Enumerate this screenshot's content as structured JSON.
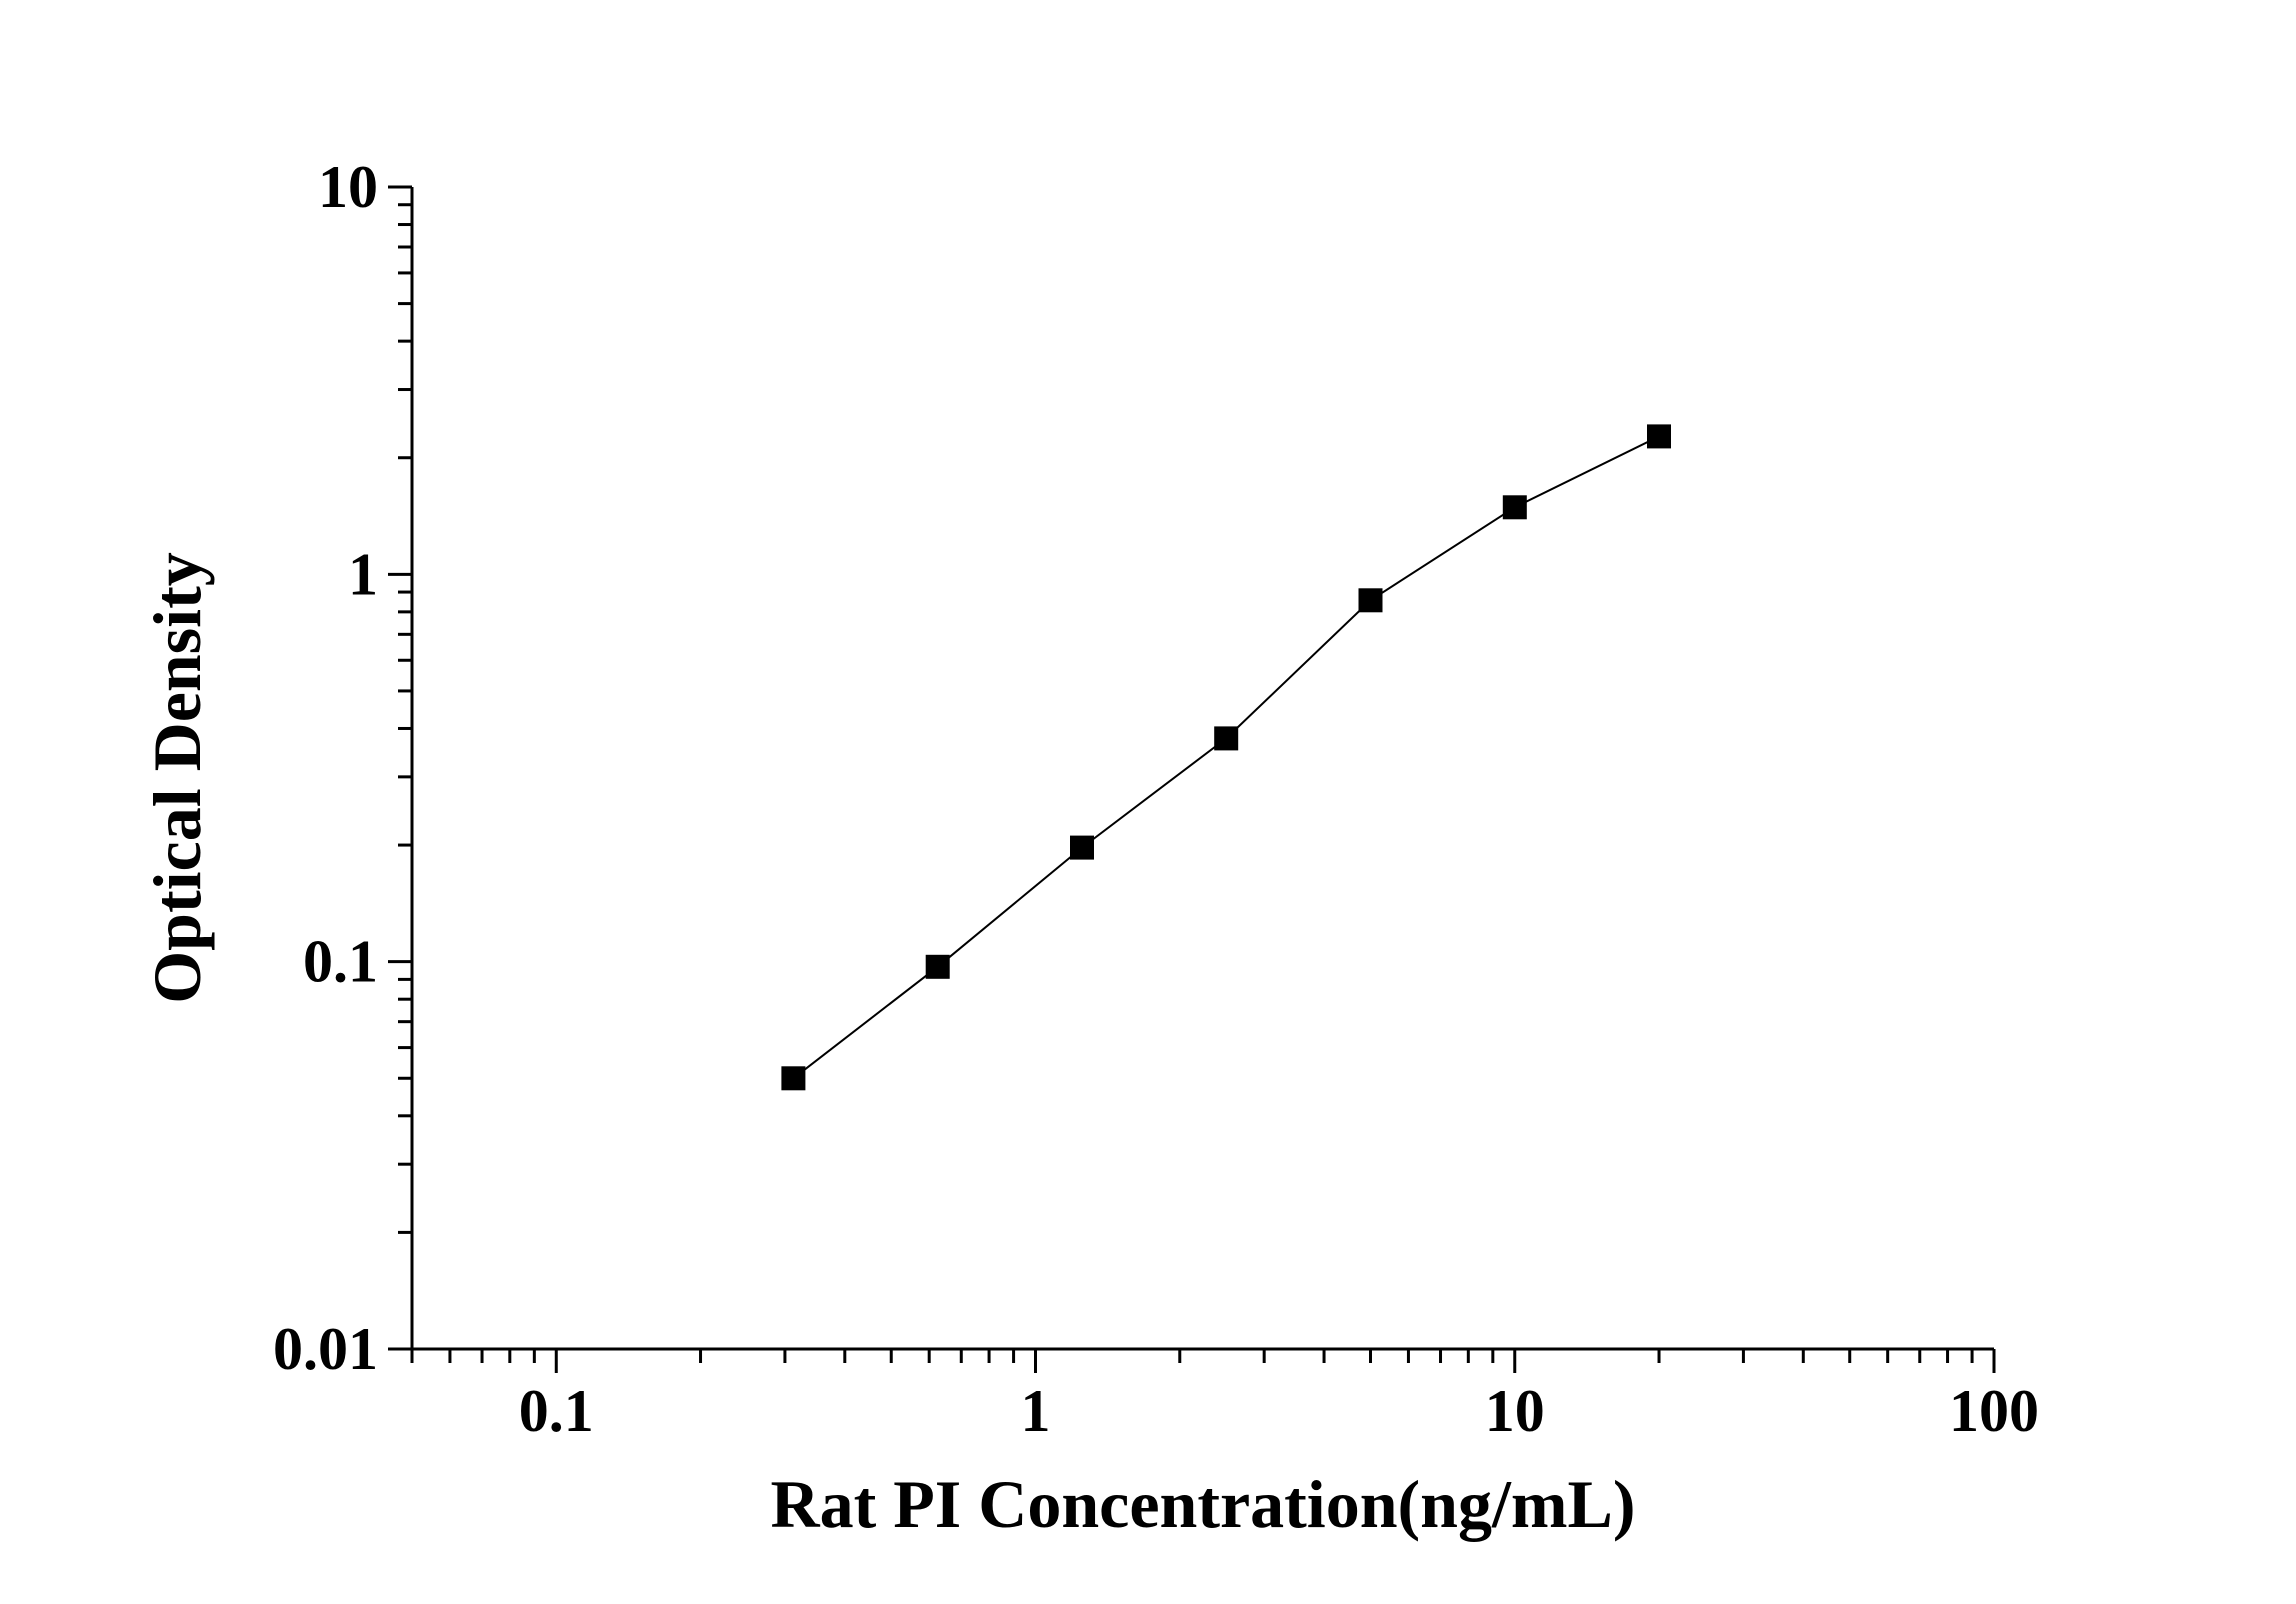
{
  "chart_data": {
    "type": "line",
    "title": "",
    "xlabel": "Rat PI Concentration(ng/mL)",
    "ylabel": "Optical Density",
    "x_scale": "log",
    "y_scale": "log",
    "xlim": [
      0.05,
      100
    ],
    "ylim": [
      0.01,
      10
    ],
    "x_ticks": [
      {
        "value": 0.1,
        "label": "0.1"
      },
      {
        "value": 1,
        "label": "1"
      },
      {
        "value": 10,
        "label": "10"
      },
      {
        "value": 100,
        "label": "100"
      }
    ],
    "y_ticks": [
      {
        "value": 0.01,
        "label": "0.01"
      },
      {
        "value": 0.1,
        "label": "0.1"
      },
      {
        "value": 1,
        "label": "1"
      },
      {
        "value": 10,
        "label": "10"
      }
    ],
    "grid": false,
    "legend": "none",
    "marker": "square",
    "color": "#000000",
    "series": [
      {
        "x": [
          0.3125,
          0.625,
          1.25,
          2.5,
          5,
          10,
          20
        ],
        "y": [
          0.05,
          0.097,
          0.197,
          0.377,
          0.857,
          1.49,
          2.27
        ]
      }
    ]
  }
}
